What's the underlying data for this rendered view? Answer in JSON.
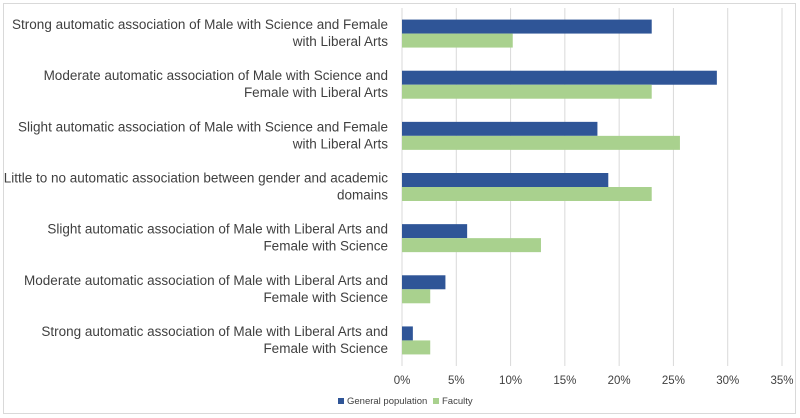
{
  "chart_data": {
    "type": "bar",
    "orientation": "horizontal",
    "title": "",
    "xlabel": "",
    "ylabel": "",
    "categories": [
      [
        "Strong automatic association of Male with Science and Female",
        "with Liberal Arts"
      ],
      [
        "Moderate automatic association of Male with Science and",
        "Female with Liberal Arts"
      ],
      [
        "Slight automatic association of Male with Science and Female",
        "with Liberal Arts"
      ],
      [
        "Little to no automatic association between gender and academic",
        "domains"
      ],
      [
        "Slight automatic association of Male with Liberal Arts and",
        "Female with Science"
      ],
      [
        "Moderate automatic association of Male with Liberal Arts and",
        "Female with Science"
      ],
      [
        "Strong automatic association of Male with Liberal Arts and",
        "Female with Science"
      ]
    ],
    "series": [
      {
        "name": "General population",
        "color": "#2f5597",
        "values": [
          23,
          29,
          18,
          19,
          6,
          4,
          1
        ]
      },
      {
        "name": "Faculty",
        "color": "#a9d18e",
        "values": [
          10.2,
          23,
          25.6,
          23,
          12.8,
          2.6,
          2.6
        ]
      }
    ],
    "xlim": [
      0,
      35
    ],
    "xticks": [
      0,
      5,
      10,
      15,
      20,
      25,
      30,
      35
    ],
    "tick_suffix": "%",
    "grid": true,
    "legend_position": "bottom"
  }
}
